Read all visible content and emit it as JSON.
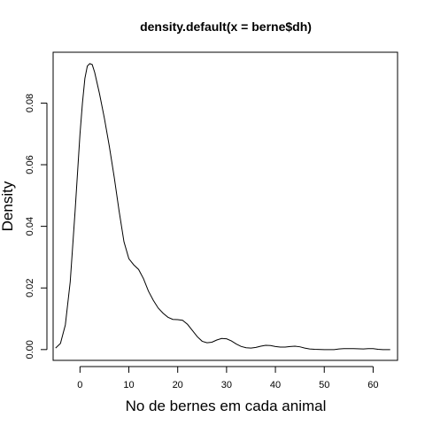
{
  "chart_data": {
    "type": "line",
    "title": "density.default(x = berne$dh)",
    "xlabel": "No de bernes em cada animal",
    "ylabel": "Density",
    "xlim": [
      -5.5,
      65
    ],
    "ylim": [
      -0.0035,
      0.0965
    ],
    "x_ticks": [
      0,
      10,
      20,
      30,
      40,
      50,
      60
    ],
    "x_tick_labels": [
      "0",
      "10",
      "20",
      "30",
      "40",
      "50",
      "60"
    ],
    "y_ticks": [
      0.0,
      0.02,
      0.04,
      0.06,
      0.08
    ],
    "y_tick_labels": [
      "0.00",
      "0.02",
      "0.04",
      "0.06",
      "0.08"
    ],
    "grid": false,
    "legend": "none",
    "series": [
      {
        "color": "#000000",
        "points": [
          [
            -5.0,
            0.0005
          ],
          [
            -4.0,
            0.002
          ],
          [
            -3.0,
            0.008
          ],
          [
            -2.0,
            0.022
          ],
          [
            -1.0,
            0.045
          ],
          [
            0.0,
            0.07
          ],
          [
            0.5,
            0.08
          ],
          [
            1.0,
            0.088
          ],
          [
            1.5,
            0.092
          ],
          [
            2.0,
            0.0928
          ],
          [
            2.5,
            0.0925
          ],
          [
            3.0,
            0.09
          ],
          [
            4.0,
            0.083
          ],
          [
            5.0,
            0.075
          ],
          [
            6.0,
            0.066
          ],
          [
            7.0,
            0.056
          ],
          [
            8.0,
            0.045
          ],
          [
            9.0,
            0.035
          ],
          [
            10.0,
            0.0295
          ],
          [
            11.0,
            0.0275
          ],
          [
            12.0,
            0.026
          ],
          [
            13.0,
            0.023
          ],
          [
            14.0,
            0.019
          ],
          [
            15.0,
            0.016
          ],
          [
            16.0,
            0.0135
          ],
          [
            17.0,
            0.0118
          ],
          [
            18.0,
            0.0105
          ],
          [
            19.0,
            0.0098
          ],
          [
            20.0,
            0.0097
          ],
          [
            21.0,
            0.0095
          ],
          [
            22.0,
            0.0082
          ],
          [
            23.0,
            0.0062
          ],
          [
            24.0,
            0.0042
          ],
          [
            25.0,
            0.0027
          ],
          [
            26.0,
            0.0022
          ],
          [
            27.0,
            0.0024
          ],
          [
            28.0,
            0.0031
          ],
          [
            29.0,
            0.0036
          ],
          [
            30.0,
            0.0035
          ],
          [
            31.0,
            0.0028
          ],
          [
            32.0,
            0.0018
          ],
          [
            33.0,
            0.001
          ],
          [
            34.0,
            0.0006
          ],
          [
            35.0,
            0.0005
          ],
          [
            36.0,
            0.0007
          ],
          [
            37.0,
            0.0011
          ],
          [
            38.0,
            0.0014
          ],
          [
            39.0,
            0.0013
          ],
          [
            40.0,
            0.001
          ],
          [
            41.0,
            0.0008
          ],
          [
            42.0,
            0.0008
          ],
          [
            43.0,
            0.001
          ],
          [
            44.0,
            0.0011
          ],
          [
            45.0,
            0.0009
          ],
          [
            46.0,
            0.0005
          ],
          [
            47.0,
            0.0002
          ],
          [
            48.0,
            0.0001
          ],
          [
            50.0,
            0.0
          ],
          [
            52.0,
            0.0
          ],
          [
            53.0,
            0.0002
          ],
          [
            54.0,
            0.0003
          ],
          [
            56.0,
            0.0003
          ],
          [
            58.0,
            0.0002
          ],
          [
            59.0,
            0.0003
          ],
          [
            60.0,
            0.0003
          ],
          [
            61.0,
            0.0001
          ],
          [
            62.0,
            0.0
          ],
          [
            63.5,
            0.0
          ]
        ]
      }
    ]
  }
}
